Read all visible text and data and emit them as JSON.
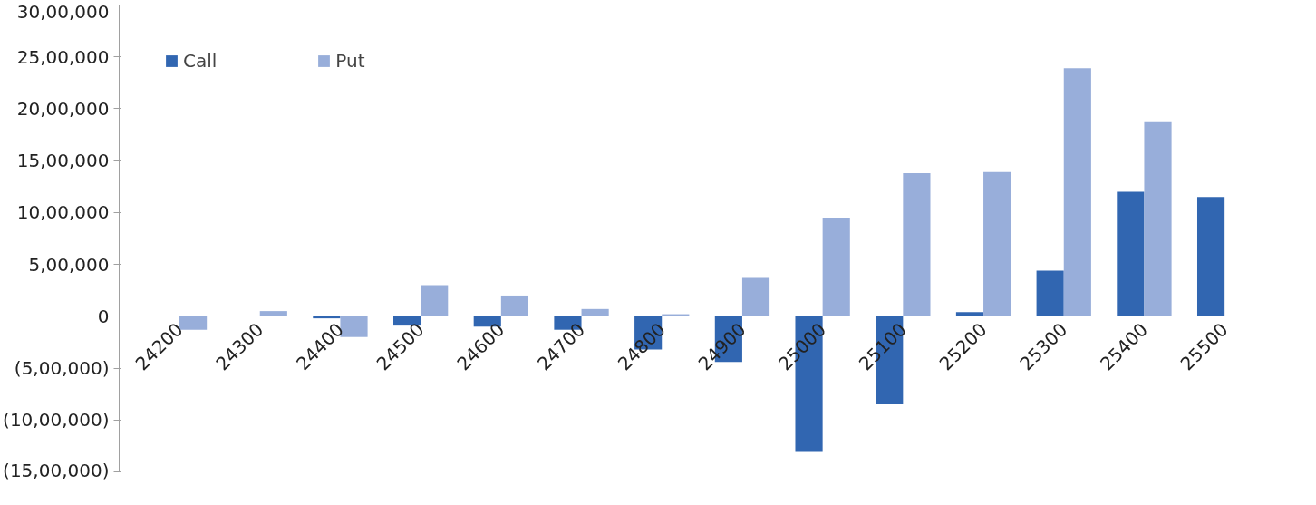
{
  "chart_data": {
    "type": "bar",
    "categories": [
      "24200",
      "24300",
      "24400",
      "24500",
      "24600",
      "24700",
      "24800",
      "24900",
      "25000",
      "25100",
      "25200",
      "25300",
      "25400",
      "25500"
    ],
    "series": [
      {
        "name": "Call",
        "color": "#3166b1",
        "values": [
          0,
          0,
          -20000,
          -90000,
          -100000,
          -130000,
          -320000,
          -440000,
          -1300000,
          -850000,
          40000,
          440000,
          1200000,
          1150000
        ]
      },
      {
        "name": "Put",
        "color": "#98aeda",
        "values": [
          -130000,
          50000,
          -200000,
          300000,
          200000,
          70000,
          20000,
          370000,
          950000,
          1380000,
          1390000,
          2390000,
          1870000,
          0
        ]
      }
    ],
    "ylim": [
      -1500000,
      3000000
    ],
    "yticks": [
      {
        "value": -1500000,
        "label": "(15,00,000)"
      },
      {
        "value": -1000000,
        "label": "(10,00,000)"
      },
      {
        "value": -500000,
        "label": "(5,00,000)"
      },
      0,
      {
        "value": 500000,
        "label": "5,00,000"
      },
      {
        "value": 1000000,
        "label": "10,00,000"
      },
      {
        "value": 1500000,
        "label": "15,00,000"
      },
      {
        "value": 2000000,
        "label": "20,00,000"
      },
      {
        "value": 2500000,
        "label": "25,00,000"
      },
      {
        "value": 3000000,
        "label": "30,00,000"
      }
    ],
    "grid": false,
    "legend": "top left"
  }
}
